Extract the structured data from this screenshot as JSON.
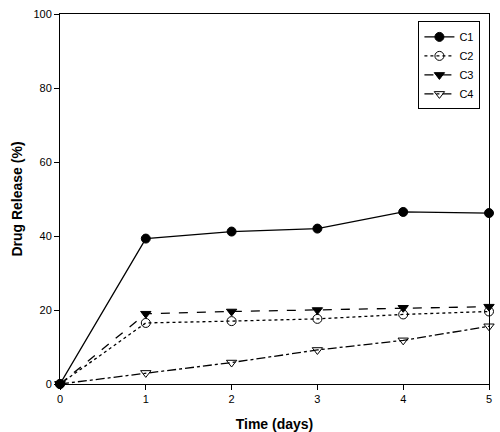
{
  "chart_data": {
    "type": "line",
    "x_label": "Time (days)",
    "y_label": "Drug Release (%)",
    "x": [
      0,
      1,
      2,
      3,
      4,
      5
    ],
    "series": [
      {
        "name": "C1",
        "color": "#000000",
        "marker": "circle",
        "line_style": "solid",
        "values": [
          0,
          39.3,
          41.2,
          42.0,
          46.5,
          46.2
        ]
      },
      {
        "name": "C2",
        "color": "#000000",
        "marker": "circle-open",
        "line_style": "dot",
        "values": [
          0,
          16.5,
          17.0,
          17.6,
          18.8,
          19.6
        ]
      },
      {
        "name": "C3",
        "color": "#000000",
        "marker": "triangle-down",
        "line_style": "dash",
        "values": [
          0,
          19.0,
          19.6,
          20.0,
          20.6,
          20.9
        ]
      },
      {
        "name": "C4",
        "color": "#000000",
        "marker": "triangle-down-open",
        "line_style": "dashdot",
        "values": [
          0,
          3.0,
          5.8,
          9.2,
          11.8,
          15.6
        ]
      }
    ],
    "xlim": [
      0,
      5
    ],
    "xticks": [
      0,
      1,
      2,
      3,
      4,
      5
    ],
    "ylim": [
      0,
      100
    ],
    "yticks": [
      0,
      20,
      40,
      60,
      80,
      100
    ],
    "grid": false,
    "legend": "top-right"
  }
}
